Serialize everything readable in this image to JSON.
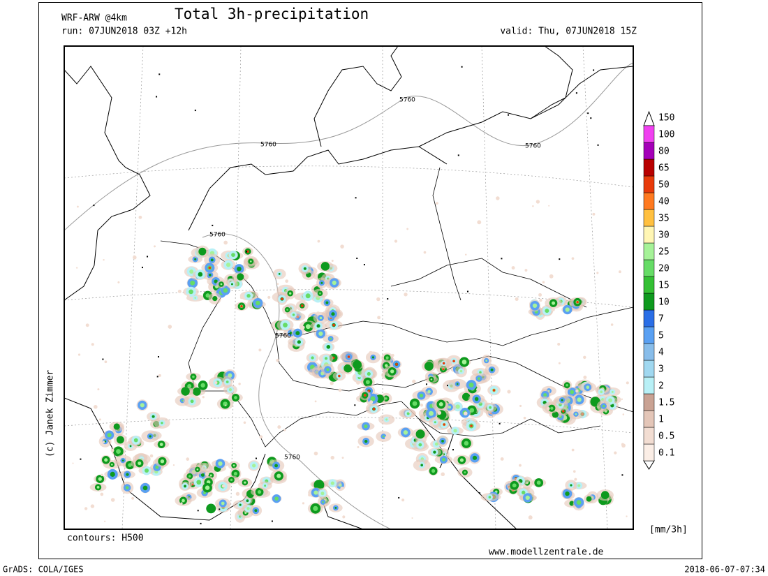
{
  "header": {
    "model": "WRF-ARW @4km",
    "title": "Total 3h-precipitation",
    "run": "run: 07JUN2018 03Z +12h",
    "valid": "valid: Thu, 07JUN2018 15Z"
  },
  "map": {
    "contour_labels": [
      "5760",
      "5760",
      "5760",
      "5760",
      "5760",
      "5760"
    ],
    "credit": "(c) Janek Zimmer",
    "contours_note": "contours: H500",
    "website": "www.modellzentrale.de"
  },
  "colorbar": {
    "levels": [
      0.1,
      0.5,
      1,
      1.5,
      2,
      3,
      4,
      5,
      7,
      10,
      15,
      20,
      25,
      30,
      35,
      40,
      50,
      65,
      80,
      100,
      150
    ],
    "colors": [
      "#fbeee6",
      "#f2ddd2",
      "#e4c6b8",
      "#c9a293",
      "#b8f0f6",
      "#a0d8f0",
      "#88bdea",
      "#5aa0f2",
      "#2a6ee6",
      "#0e9a1e",
      "#34c034",
      "#66dc66",
      "#a6f298",
      "#fff6b4",
      "#ffc040",
      "#ff7a20",
      "#e83a0a",
      "#b80000",
      "#a400b8",
      "#f040f0"
    ],
    "unit": "[mm/3h]"
  },
  "footer": {
    "software": "GrADS: COLA/IGES",
    "timestamp": "2018-06-07-07:34"
  }
}
